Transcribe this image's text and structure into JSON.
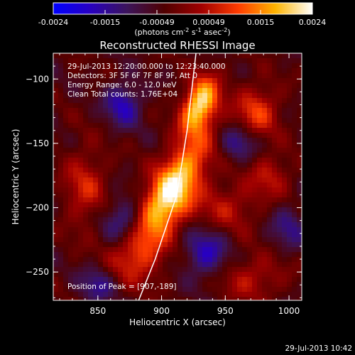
{
  "chart_data": {
    "type": "heatmap",
    "title": "Reconstructed RHESSI Image",
    "xlabel": "Heliocentric X (arcsec)",
    "ylabel": "Heliocentric Y (arcsec)",
    "xlim": [
      815,
      1010
    ],
    "ylim": [
      -272,
      -80
    ],
    "x_ticks": [
      850,
      900,
      950,
      1000
    ],
    "y_ticks": [
      -100,
      -150,
      -200,
      -250
    ],
    "colorbar": {
      "min": -0.0024,
      "max": 0.0024,
      "ticks": [
        "-0.0024",
        "-0.0015",
        "-0.00049",
        "0.00049",
        "0.0015",
        "0.0024"
      ],
      "label": "(photons cm",
      "label_sup1": "-2",
      "label_mid": " s",
      "label_sup2": "-1",
      "label_end": " asec",
      "label_sup3": "-2",
      "label_close": ")",
      "colors": [
        "#0000ff",
        "#2800c0",
        "#3c145a",
        "#500000",
        "#a00000",
        "#ff3c00",
        "#ffb400",
        "#ffffff"
      ]
    },
    "peak": {
      "x": 907,
      "y": -189
    },
    "sources": [
      {
        "x": 907,
        "y": -189,
        "sx": 12,
        "sy": 32,
        "rot": 30,
        "amp": 1.0
      },
      {
        "x": 930,
        "y": -120,
        "sx": 9,
        "sy": 16,
        "rot": 20,
        "amp": 0.9
      },
      {
        "x": 975,
        "y": -125,
        "sx": 12,
        "sy": 14,
        "rot": 0,
        "amp": 0.45
      },
      {
        "x": 840,
        "y": -185,
        "sx": 12,
        "sy": 22,
        "rot": 0,
        "amp": 0.35
      },
      {
        "x": 950,
        "y": -200,
        "sx": 18,
        "sy": 14,
        "rot": 0,
        "amp": 0.3
      },
      {
        "x": 985,
        "y": -175,
        "sx": 12,
        "sy": 12,
        "rot": 0,
        "amp": 0.3
      },
      {
        "x": 880,
        "y": -240,
        "sx": 16,
        "sy": 14,
        "rot": 0,
        "amp": 0.3
      },
      {
        "x": 970,
        "y": -255,
        "sx": 18,
        "sy": 12,
        "rot": 0,
        "amp": 0.3
      },
      {
        "x": 870,
        "y": -120,
        "sx": 10,
        "sy": 12,
        "rot": 0,
        "amp": -0.45
      },
      {
        "x": 960,
        "y": -150,
        "sx": 10,
        "sy": 10,
        "rot": 0,
        "amp": -0.35
      },
      {
        "x": 870,
        "y": -210,
        "sx": 12,
        "sy": 12,
        "rot": 0,
        "amp": -0.4
      },
      {
        "x": 935,
        "y": -235,
        "sx": 12,
        "sy": 14,
        "rot": 0,
        "amp": -0.45
      },
      {
        "x": 850,
        "y": -260,
        "sx": 10,
        "sy": 10,
        "rot": 0,
        "amp": -0.35
      },
      {
        "x": 1000,
        "y": -215,
        "sx": 10,
        "sy": 12,
        "rot": 0,
        "amp": -0.3
      }
    ],
    "limb": [
      [
        927,
        -80
      ],
      [
        920,
        -140
      ],
      [
        912,
        -190
      ],
      [
        895,
        -240
      ],
      [
        882,
        -272
      ]
    ]
  },
  "info": {
    "line1": "29-Jul-2013 12:20:00.000 to 12:23:40.000",
    "line2": "Detectors: 3F 5F 6F 7F 8F 9F, Att 0",
    "line3": "Energy Range: 6.0 - 12.0 keV",
    "line4": "Clean     Total counts: 1.76E+04",
    "peak_label": "Position of Peak = [907,-189]"
  },
  "timestamp": "29-Jul-2013 10:42"
}
